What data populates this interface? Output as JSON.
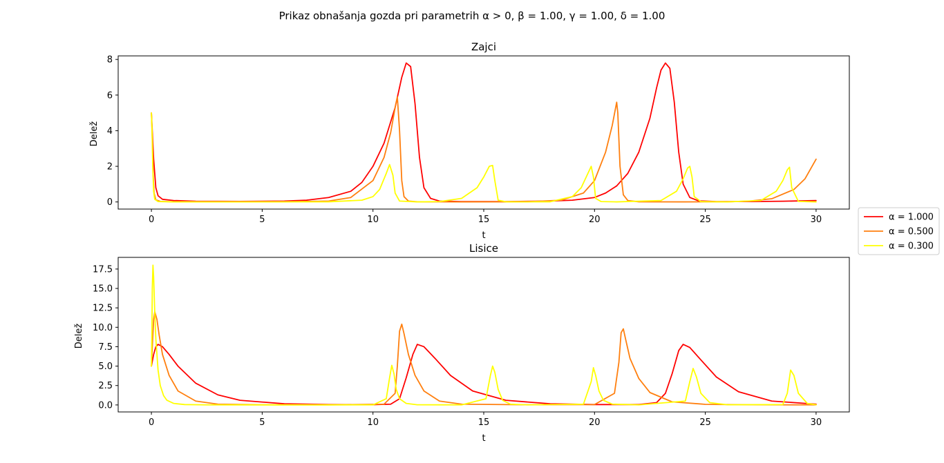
{
  "figure": {
    "suptitle": "Prikaz obnašanja gozda pri parametrih α > 0, β = 1.00, γ = 1.00, δ = 1.00"
  },
  "legend": {
    "placement": "right-center",
    "entries": [
      "α = 1.000",
      "α = 0.500",
      "α = 0.300"
    ],
    "colors": [
      "#ff0000",
      "#ff7f0e",
      "#ffff00"
    ]
  },
  "chart_data": [
    {
      "type": "line",
      "title": "Zajci",
      "xlabel": "t",
      "ylabel": "Delež",
      "xlim": [
        -1.5,
        31.5
      ],
      "ylim": [
        -0.4,
        8.2
      ],
      "xticks": [
        0,
        5,
        10,
        15,
        20,
        25,
        30
      ],
      "xtick_labels": [
        "0",
        "5",
        "10",
        "15",
        "20",
        "25",
        "30"
      ],
      "yticks": [
        0,
        2,
        4,
        6,
        8
      ],
      "ytick_labels": [
        "0",
        "2",
        "4",
        "6",
        "8"
      ],
      "grid": false,
      "series": [
        {
          "name": "α = 1.000",
          "color": "#ff0000",
          "x": [
            0,
            0.1,
            0.2,
            0.3,
            0.5,
            1,
            2,
            4,
            6,
            7,
            8,
            9,
            9.5,
            10,
            10.5,
            11,
            11.3,
            11.5,
            11.7,
            11.9,
            12.1,
            12.3,
            12.6,
            13,
            14,
            16,
            18,
            19,
            20,
            20.5,
            21,
            21.5,
            22,
            22.5,
            22.8,
            23,
            23.2,
            23.4,
            23.6,
            23.8,
            24,
            24.3,
            24.7,
            25.5,
            27,
            28.5,
            30
          ],
          "y": [
            5,
            2.4,
            0.8,
            0.35,
            0.15,
            0.08,
            0.04,
            0.03,
            0.05,
            0.1,
            0.25,
            0.6,
            1.1,
            2.0,
            3.3,
            5.3,
            7.0,
            7.8,
            7.6,
            5.5,
            2.5,
            0.8,
            0.2,
            0.05,
            0.02,
            0.02,
            0.05,
            0.1,
            0.25,
            0.5,
            0.9,
            1.6,
            2.8,
            4.7,
            6.4,
            7.4,
            7.8,
            7.5,
            5.6,
            2.8,
            1.0,
            0.25,
            0.06,
            0.02,
            0.02,
            0.04,
            0.08
          ]
        },
        {
          "name": "α = 0.500",
          "color": "#ff7f0e",
          "x": [
            0,
            0.04,
            0.08,
            0.12,
            0.2,
            0.4,
            1,
            3,
            6,
            8,
            9,
            10,
            10.5,
            10.8,
            11.0,
            11.1,
            11.2,
            11.3,
            11.4,
            11.6,
            12,
            14,
            17,
            18.5,
            19.5,
            20,
            20.5,
            20.8,
            21.0,
            21.05,
            21.15,
            21.3,
            21.5,
            22,
            24,
            26,
            27,
            28,
            29,
            29.5,
            30
          ],
          "y": [
            5,
            3.5,
            1.5,
            0.5,
            0.12,
            0.03,
            0.01,
            0.005,
            0.01,
            0.05,
            0.25,
            1.2,
            2.5,
            3.9,
            5.3,
            5.9,
            4.0,
            1.2,
            0.3,
            0.05,
            0.01,
            0.005,
            0.01,
            0.1,
            0.5,
            1.2,
            2.8,
            4.3,
            5.6,
            5.0,
            2.0,
            0.4,
            0.08,
            0.01,
            0.005,
            0.01,
            0.05,
            0.18,
            0.7,
            1.3,
            2.4
          ]
        },
        {
          "name": "α = 0.300",
          "color": "#ffff00",
          "x": [
            0,
            0.03,
            0.06,
            0.1,
            0.15,
            0.3,
            1,
            4,
            8,
            9.5,
            10,
            10.3,
            10.6,
            10.75,
            10.9,
            11.0,
            11.2,
            12,
            13,
            14,
            14.7,
            15.0,
            15.25,
            15.4,
            15.5,
            15.65,
            16,
            18,
            19,
            19.4,
            19.7,
            19.85,
            19.95,
            20.05,
            20.3,
            21,
            23,
            23.7,
            24.0,
            24.2,
            24.3,
            24.4,
            24.5,
            24.8,
            26,
            27.5,
            28.2,
            28.5,
            28.7,
            28.8,
            28.9,
            29.2,
            30
          ],
          "y": [
            5,
            4.0,
            2.0,
            0.6,
            0.15,
            0.02,
            0.005,
            0.005,
            0.01,
            0.1,
            0.3,
            0.7,
            1.6,
            2.1,
            1.5,
            0.5,
            0.05,
            0.005,
            0.02,
            0.2,
            0.8,
            1.4,
            2.0,
            2.05,
            1.2,
            0.1,
            0.01,
            0.01,
            0.3,
            0.8,
            1.6,
            2.0,
            1.4,
            0.2,
            0.02,
            0.005,
            0.08,
            0.6,
            1.3,
            1.9,
            2.0,
            1.4,
            0.3,
            0.02,
            0.005,
            0.08,
            0.6,
            1.2,
            1.8,
            1.95,
            0.8,
            0.03,
            0.005
          ]
        }
      ]
    },
    {
      "type": "line",
      "title": "Lisice",
      "xlabel": "t",
      "ylabel": "Delež",
      "xlim": [
        -1.5,
        31.5
      ],
      "ylim": [
        -0.9,
        19.0
      ],
      "xticks": [
        0,
        5,
        10,
        15,
        20,
        25,
        30
      ],
      "xtick_labels": [
        "0",
        "5",
        "10",
        "15",
        "20",
        "25",
        "30"
      ],
      "yticks": [
        0,
        2.5,
        5,
        7.5,
        10,
        12.5,
        15,
        17.5
      ],
      "ytick_labels": [
        "0.0",
        "2.5",
        "5.0",
        "7.5",
        "10.0",
        "12.5",
        "15.0",
        "17.5"
      ],
      "grid": false,
      "series": [
        {
          "name": "α = 1.000",
          "color": "#ff0000",
          "x": [
            0,
            0.1,
            0.2,
            0.3,
            0.5,
            0.8,
            1.2,
            2,
            3,
            4,
            6,
            8,
            10,
            10.8,
            11.2,
            11.5,
            11.8,
            12.0,
            12.3,
            12.8,
            13.5,
            14.5,
            16,
            18,
            20,
            22,
            22.8,
            23.2,
            23.5,
            23.8,
            24.0,
            24.3,
            24.8,
            25.5,
            26.5,
            28,
            30
          ],
          "y": [
            5,
            6.5,
            7.5,
            7.8,
            7.5,
            6.5,
            5.0,
            2.8,
            1.3,
            0.6,
            0.15,
            0.05,
            0.04,
            0.1,
            0.8,
            3.5,
            6.5,
            7.8,
            7.5,
            6.0,
            3.8,
            1.8,
            0.6,
            0.15,
            0.05,
            0.05,
            0.3,
            1.5,
            4.0,
            7.0,
            7.8,
            7.4,
            5.8,
            3.6,
            1.7,
            0.5,
            0.1
          ]
        },
        {
          "name": "α = 0.500",
          "color": "#ff7f0e",
          "x": [
            0,
            0.05,
            0.1,
            0.15,
            0.25,
            0.35,
            0.5,
            0.8,
            1.2,
            2,
            3,
            5,
            8,
            10.5,
            11.0,
            11.1,
            11.2,
            11.3,
            11.4,
            11.6,
            11.9,
            12.3,
            13,
            14,
            17,
            20,
            20.9,
            21.1,
            21.2,
            21.3,
            21.4,
            21.6,
            22,
            22.5,
            23.5,
            25,
            27,
            30
          ],
          "y": [
            5,
            8.0,
            11.0,
            12.0,
            11.0,
            9.0,
            6.5,
            3.8,
            1.8,
            0.5,
            0.1,
            0.02,
            0.01,
            0.1,
            1.5,
            5.0,
            9.5,
            10.4,
            9.2,
            6.5,
            3.8,
            1.8,
            0.5,
            0.1,
            0.02,
            0.05,
            1.5,
            5.5,
            9.3,
            9.8,
            8.5,
            6.0,
            3.4,
            1.6,
            0.4,
            0.08,
            0.02,
            0.01
          ]
        },
        {
          "name": "α = 0.300",
          "color": "#ffff00",
          "x": [
            0,
            0.02,
            0.04,
            0.07,
            0.1,
            0.15,
            0.2,
            0.3,
            0.4,
            0.55,
            0.7,
            1.0,
            1.5,
            2.5,
            5,
            8,
            10,
            10.6,
            10.75,
            10.85,
            10.95,
            11.05,
            11.2,
            11.5,
            12,
            14,
            15.1,
            15.3,
            15.4,
            15.5,
            15.65,
            15.85,
            16.2,
            17,
            19.5,
            19.85,
            19.95,
            20.05,
            20.2,
            20.4,
            20.8,
            22,
            24.1,
            24.3,
            24.45,
            24.6,
            24.8,
            25.2,
            26,
            28.5,
            28.7,
            28.85,
            29.0,
            29.2,
            29.6,
            30
          ],
          "y": [
            5,
            9.0,
            15.0,
            18.0,
            16.5,
            12.0,
            8.5,
            4.5,
            2.5,
            1.2,
            0.6,
            0.2,
            0.05,
            0.01,
            0.005,
            0.005,
            0.01,
            0.8,
            3.5,
            5.1,
            4.0,
            2.0,
            0.8,
            0.2,
            0.02,
            0.01,
            0.8,
            3.8,
            5.0,
            4.2,
            2.0,
            0.6,
            0.1,
            0.01,
            0.1,
            3.0,
            4.8,
            3.8,
            1.8,
            0.6,
            0.1,
            0.01,
            0.5,
            3.0,
            4.7,
            3.6,
            1.5,
            0.3,
            0.02,
            0.05,
            1.5,
            4.5,
            3.8,
            1.5,
            0.2,
            0.02
          ]
        }
      ]
    }
  ]
}
